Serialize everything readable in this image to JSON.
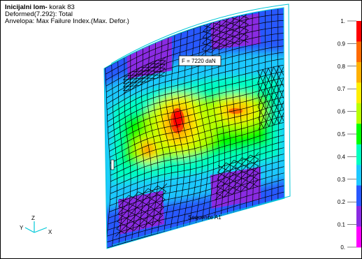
{
  "header": {
    "title_bold": "Inicijalni lom-",
    "title_rest": " korak 83",
    "line2": "Deformed(7.292): Total",
    "line3": "Anvelopa: Max Failure Index.(Max. Defor.)"
  },
  "model": {
    "force_label": "F = 7220 daN",
    "sequence_label": "Sequence A1",
    "mesh_color": "#000000",
    "outline_color": "#00c8d8"
  },
  "triad": {
    "z_label": "Z",
    "y_label": "Y",
    "x_label": "X",
    "axis_color": "#00c8d8"
  },
  "legend": {
    "labels": [
      "1.",
      "0.9",
      "0.8",
      "0.7",
      "0.6",
      "0.5",
      "0.4",
      "0.3",
      "0.2",
      "0.1",
      "0."
    ],
    "colors": [
      "#ff0000",
      "#ff6a00",
      "#ffb000",
      "#ffee00",
      "#b8ff00",
      "#00ff00",
      "#00ffc0",
      "#1ec8ff",
      "#2858ff",
      "#8a2be2",
      "#ff00ff"
    ]
  }
}
